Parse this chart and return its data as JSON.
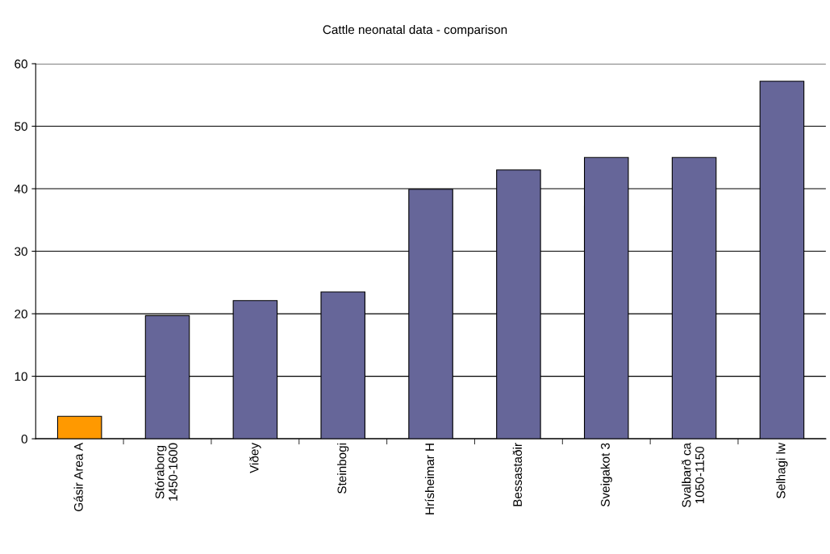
{
  "chart_data": {
    "type": "bar",
    "title": "Cattle neonatal data - comparison",
    "categories": [
      "Gásir Area A",
      "Stóraborg\n1450-1600",
      "Viðey",
      "Steinbogi",
      "Hrísheimar H",
      "Bessastaðir",
      "Sveigakot 3",
      "Svalbarð ca\n1050-1150",
      "Selhagi lw"
    ],
    "values": [
      3.6,
      19.7,
      22.1,
      23.5,
      39.9,
      43.0,
      45.0,
      45.0,
      57.2
    ],
    "colors": [
      "#ff9900",
      "#666699",
      "#666699",
      "#666699",
      "#666699",
      "#666699",
      "#666699",
      "#666699",
      "#666699"
    ],
    "ylim": [
      0,
      60
    ],
    "yticks": [
      0,
      10,
      20,
      30,
      40,
      50,
      60
    ],
    "grid": "y",
    "legend": false
  }
}
